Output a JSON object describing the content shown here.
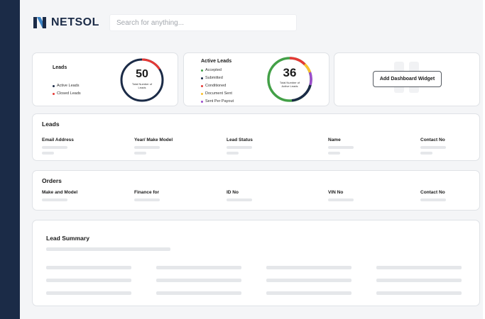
{
  "brand": {
    "name": "NETSOL",
    "color": "#1b2b47"
  },
  "search": {
    "placeholder": "Search for anything..."
  },
  "leads_card": {
    "title": "Leads",
    "legend": [
      {
        "label": "Active Leads",
        "color": "#1b2b47"
      },
      {
        "label": "Closed Leads",
        "color": "#e53935"
      }
    ],
    "total": "50",
    "caption": "Total Number of Leads"
  },
  "active_leads_card": {
    "title": "Active Leads",
    "legend": [
      {
        "label": "Accepted",
        "color": "#43a047"
      },
      {
        "label": "Submitted",
        "color": "#1b2b47"
      },
      {
        "label": "Conditioned",
        "color": "#e53935"
      },
      {
        "label": "Document Sent",
        "color": "#fbc02d"
      },
      {
        "label": "Sent Per Payout",
        "color": "#9c4dcc"
      }
    ],
    "total": "36",
    "caption": "Total Number of Active Leads"
  },
  "widget": {
    "button_label": "Add Dashboard Widget"
  },
  "leads_section": {
    "title": "Leads",
    "columns": [
      "Email Address",
      "Year/ Make Model",
      "Lead Status",
      "Name",
      "Contact No"
    ]
  },
  "orders_section": {
    "title": "Orders",
    "columns": [
      "Make and Model",
      "Finance for",
      "ID No",
      "VIN No",
      "Contact No"
    ]
  },
  "summary_section": {
    "title": "Lead Summary"
  }
}
